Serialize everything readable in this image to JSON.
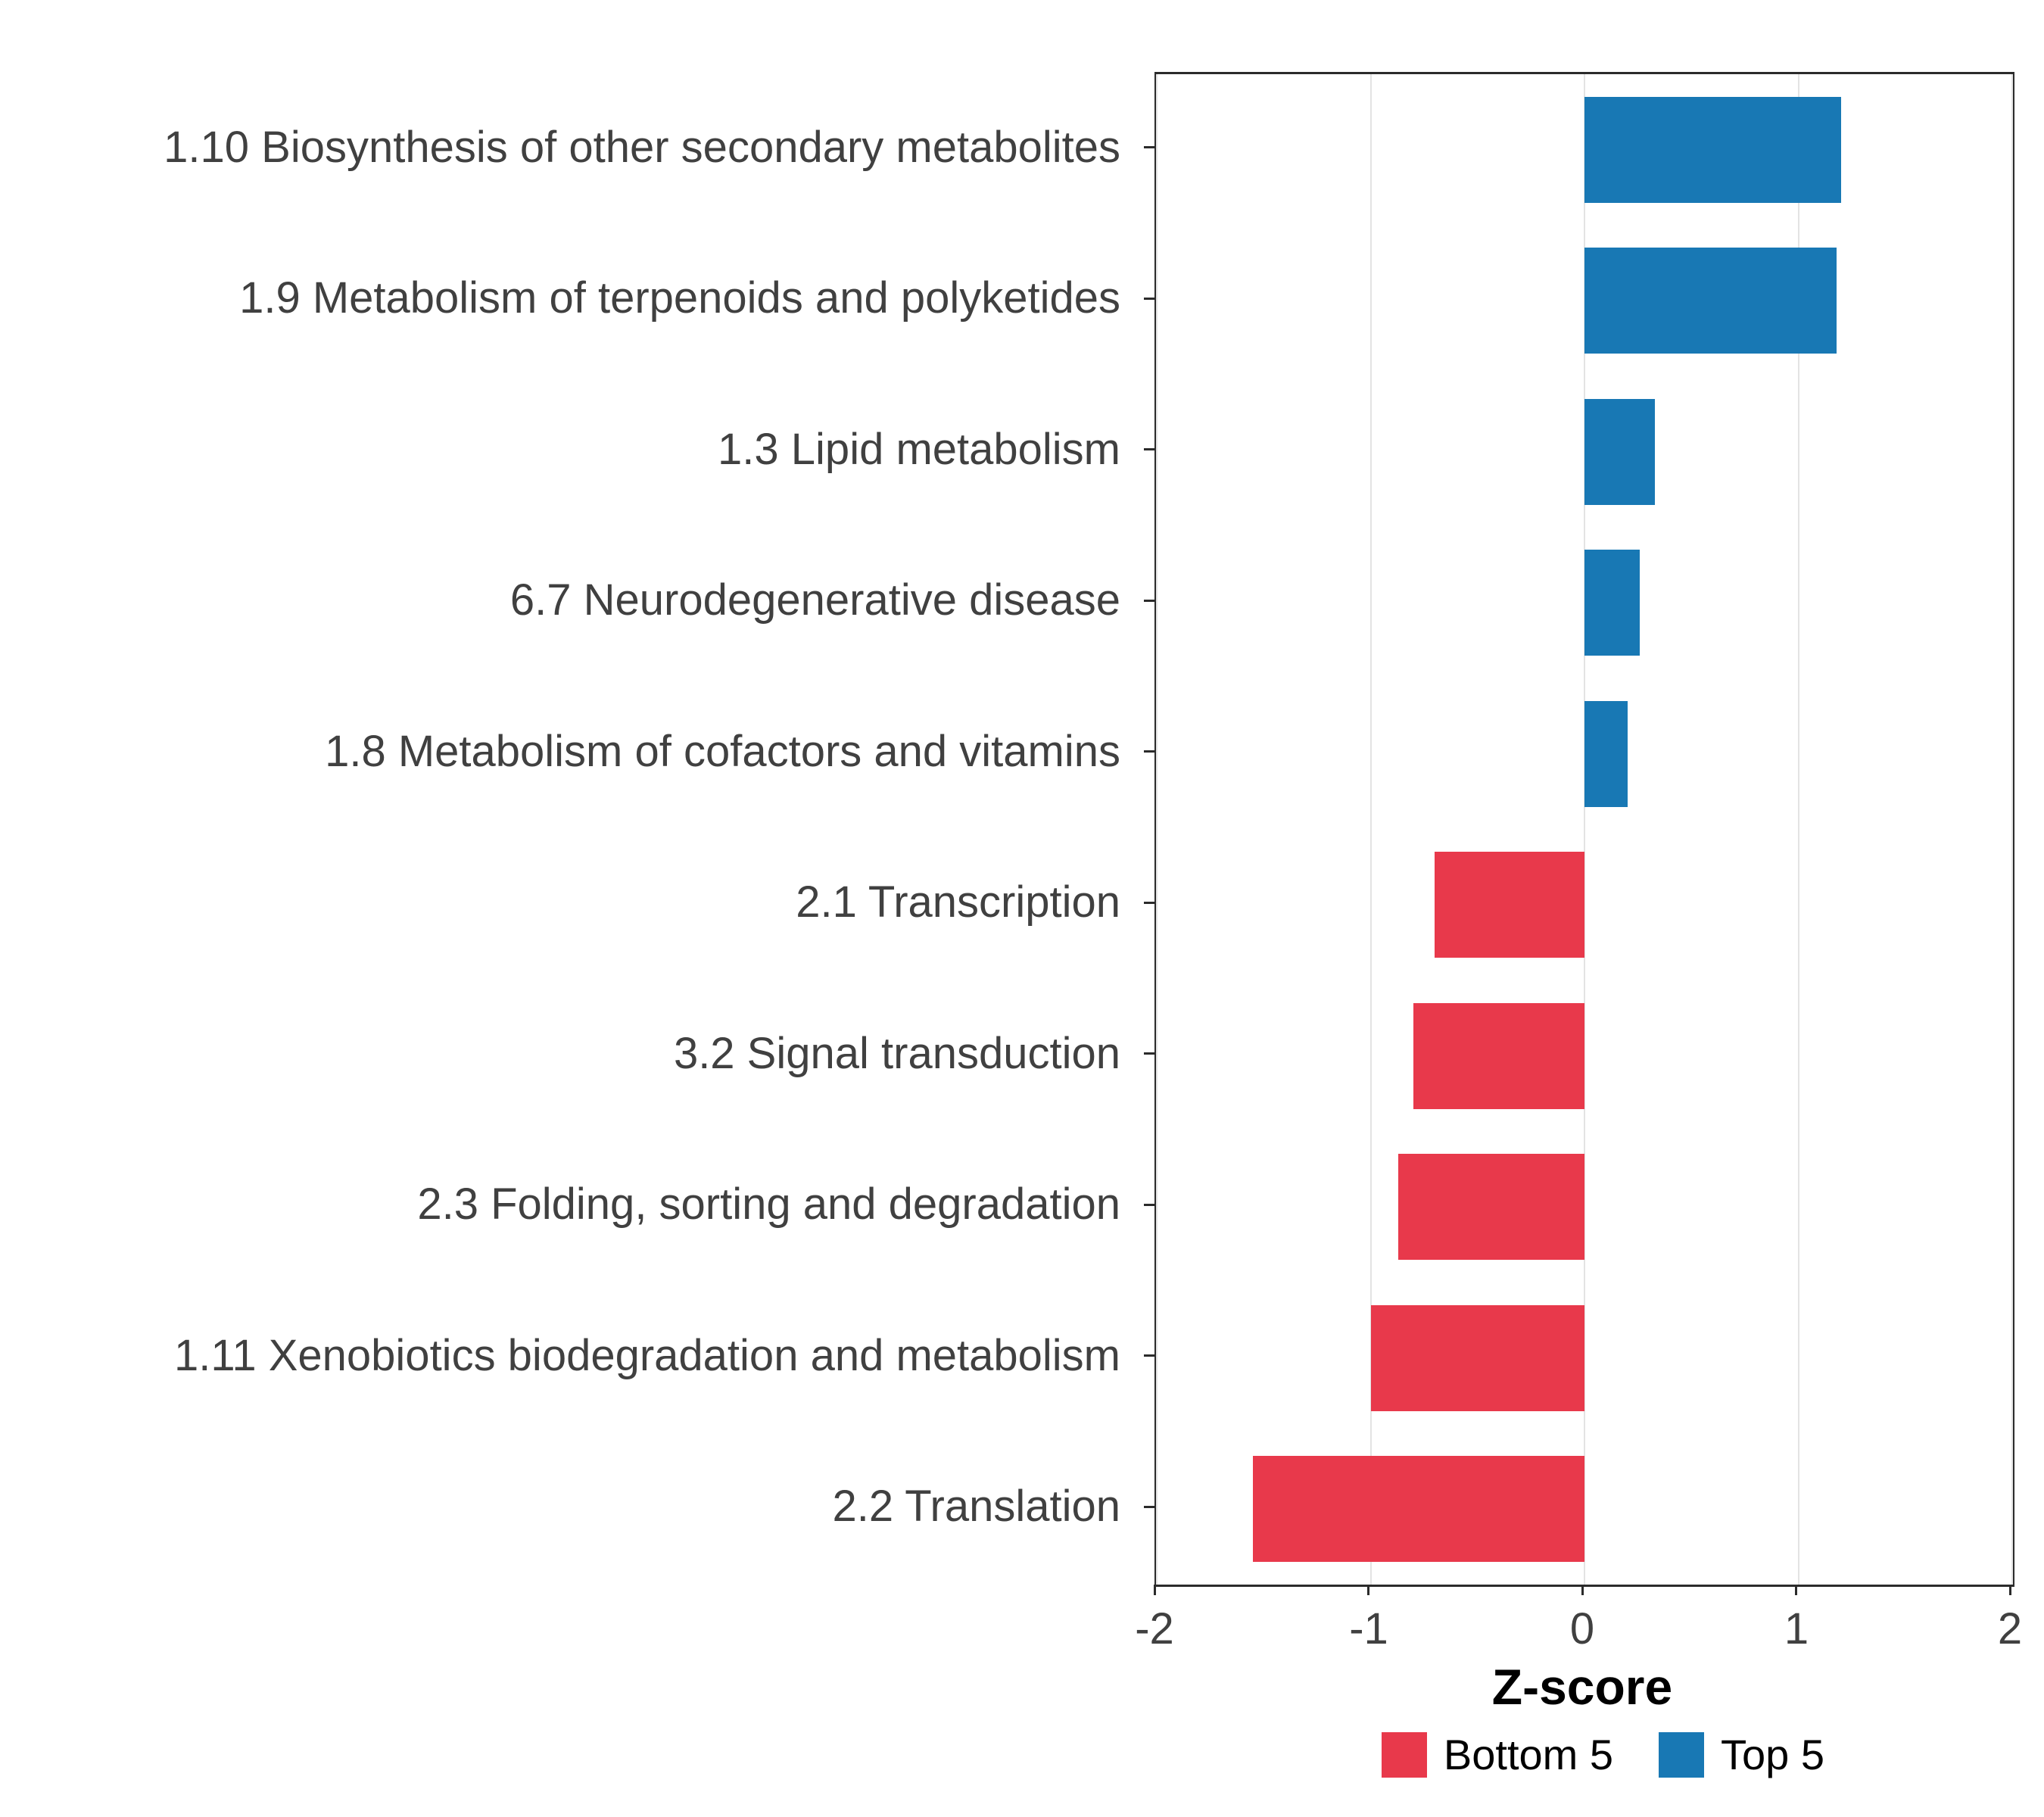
{
  "chart_data": {
    "type": "bar",
    "orientation": "horizontal",
    "title": "",
    "xlabel": "Z-score",
    "ylabel": "",
    "xlim": [
      -2,
      2
    ],
    "xticks": [
      -2,
      -1,
      0,
      1,
      2
    ],
    "grid": "major-vertical",
    "legend_position": "bottom-right",
    "categories": [
      "1.10 Biosynthesis of other secondary metabolites",
      "1.9 Metabolism of terpenoids and polyketides",
      "1.3 Lipid metabolism",
      "6.7 Neurodegenerative disease",
      "1.8 Metabolism of cofactors and vitamins",
      "2.1 Transcription",
      "3.2 Signal transduction",
      "2.3 Folding, sorting and degradation",
      "1.11 Xenobiotics biodegradation and metabolism",
      "2.2 Translation"
    ],
    "values": [
      1.2,
      1.18,
      0.33,
      0.26,
      0.2,
      -0.7,
      -0.8,
      -0.87,
      -1.0,
      -1.55
    ],
    "groups": [
      "Top 5",
      "Top 5",
      "Top 5",
      "Top 5",
      "Top 5",
      "Bottom 5",
      "Bottom 5",
      "Bottom 5",
      "Bottom 5",
      "Bottom 5"
    ],
    "colors": {
      "Top 5": "#1878b4",
      "Bottom 5": "#e8394b"
    },
    "legend": [
      {
        "label": "Bottom 5",
        "color": "#e8394b"
      },
      {
        "label": "Top 5",
        "color": "#1878b4"
      }
    ]
  }
}
